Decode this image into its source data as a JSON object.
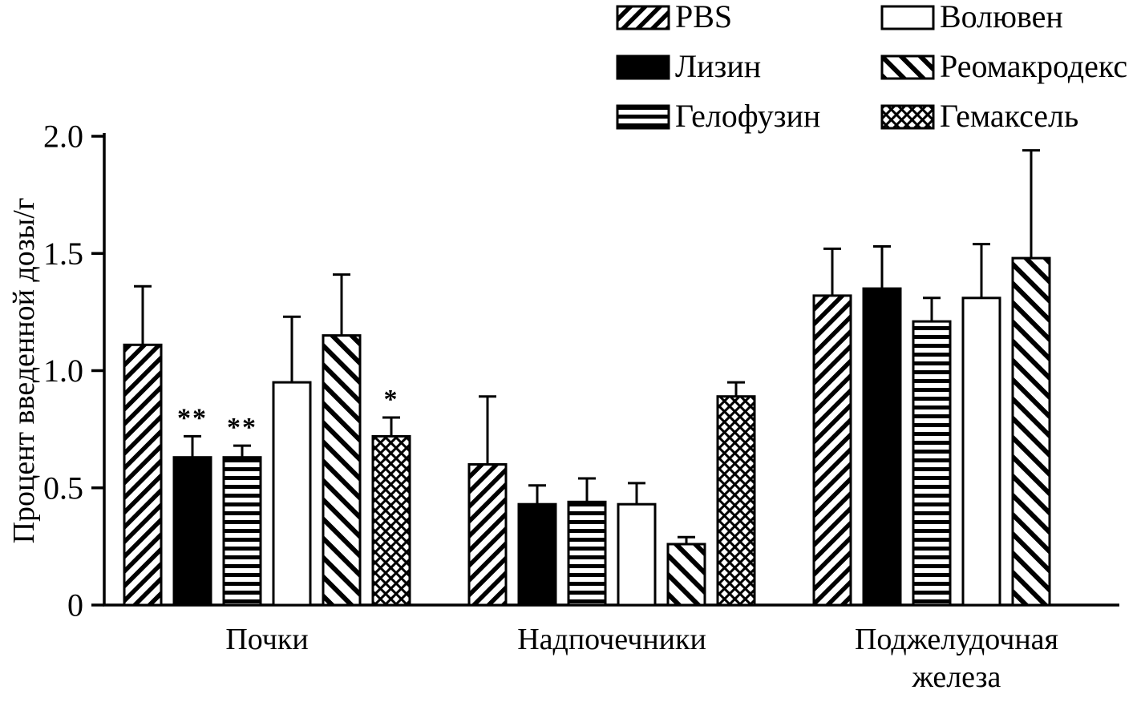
{
  "figure": {
    "background": "#ffffff",
    "ink_color": "#000000"
  },
  "chart_data": {
    "type": "bar",
    "title": "",
    "xlabel": "",
    "ylabel": "Процент введенной дозы/г",
    "ylim": [
      0,
      2.0
    ],
    "yticks": [
      0,
      0.5,
      1.0,
      1.5,
      2.0
    ],
    "ytick_labels": [
      "0",
      "0.5",
      "1.0",
      "1.5",
      "2.0"
    ],
    "grid": false,
    "categories": [
      "Почки",
      "Надпочечники",
      "Поджелудочная\nжелеза"
    ],
    "series": [
      {
        "name": "PBS",
        "pattern": "diag-up",
        "values": [
          1.11,
          0.6,
          1.32
        ],
        "errors": [
          0.25,
          0.29,
          0.2
        ],
        "annotations": [
          "",
          "",
          ""
        ]
      },
      {
        "name": "Лизин",
        "pattern": "solid",
        "values": [
          0.63,
          0.43,
          1.35
        ],
        "errors": [
          0.09,
          0.08,
          0.18
        ],
        "annotations": [
          "**",
          "",
          ""
        ]
      },
      {
        "name": "Гелофузин",
        "pattern": "hlines",
        "values": [
          0.63,
          0.44,
          1.21
        ],
        "errors": [
          0.05,
          0.1,
          0.1
        ],
        "annotations": [
          "**",
          "",
          ""
        ]
      },
      {
        "name": "Волювен",
        "pattern": "empty",
        "values": [
          0.95,
          0.43,
          1.31
        ],
        "errors": [
          0.28,
          0.09,
          0.23
        ],
        "annotations": [
          "",
          "",
          ""
        ]
      },
      {
        "name": "Реомакродекс",
        "pattern": "diag-down",
        "values": [
          1.15,
          0.26,
          1.48
        ],
        "errors": [
          0.26,
          0.03,
          0.46
        ],
        "annotations": [
          "",
          "",
          ""
        ]
      },
      {
        "name": "Гемаксель",
        "pattern": "cross",
        "values": [
          0.72,
          0.89,
          null
        ],
        "errors": [
          0.08,
          0.06,
          null
        ],
        "annotations": [
          "*",
          "",
          ""
        ]
      }
    ],
    "legend": {
      "position": "top",
      "columns": 2,
      "fill_order": "column"
    }
  }
}
